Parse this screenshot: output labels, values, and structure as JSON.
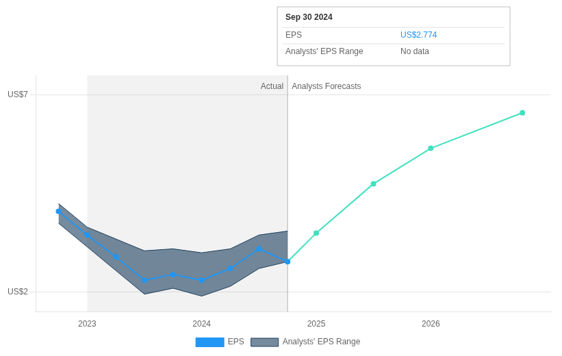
{
  "chart_data": {
    "type": "line",
    "xlim": [
      2022.55,
      2027.05
    ],
    "xticks": [
      2023.0,
      2024.0,
      2025.0,
      2026.0
    ],
    "ylim": [
      1.5,
      7.5
    ],
    "yticks": [
      {
        "value": 2,
        "label": "US$2"
      },
      {
        "value": 7,
        "label": "US$7"
      }
    ],
    "grid": true,
    "legend": "bottom",
    "series": [
      {
        "name": "EPS",
        "color": "#2196f3",
        "x": [
          2022.75,
          2023.0,
          2023.25,
          2023.5,
          2023.75,
          2024.0,
          2024.25,
          2024.5,
          2024.75
        ],
        "values": [
          4.05,
          3.45,
          2.9,
          2.3,
          2.45,
          2.3,
          2.6,
          3.1,
          2.774
        ]
      },
      {
        "color": "#40e0c0",
        "x": [
          2024.75,
          2025.0,
          2025.5,
          2026.0,
          2026.8
        ],
        "values": [
          2.774,
          3.5,
          4.75,
          5.65,
          6.55
        ]
      },
      {
        "name": "Analysts' EPS Range",
        "type": "range",
        "color": "#1a3d5c",
        "x": [
          2022.75,
          2023.0,
          2023.25,
          2023.5,
          2023.75,
          2024.0,
          2024.25,
          2024.5,
          2024.75
        ],
        "upper": [
          4.25,
          3.65,
          3.35,
          3.05,
          3.1,
          3.0,
          3.1,
          3.45,
          3.55
        ],
        "lower": [
          3.75,
          3.15,
          2.55,
          1.95,
          2.1,
          1.9,
          2.15,
          2.6,
          2.774
        ]
      }
    ],
    "annotations": [
      {
        "type": "span",
        "x": [
          2023.0,
          2024.75
        ]
      },
      {
        "type": "vline",
        "x": 2024.75
      },
      {
        "type": "text",
        "text": "Actual",
        "x": 2024.75,
        "y": 7,
        "align": "right"
      },
      {
        "type": "text",
        "text": "Analysts Forecasts",
        "x": 2024.75,
        "y": 7,
        "align": "left"
      },
      {
        "type": "box",
        "title": "Sep 30 2024",
        "rows": [
          {
            "label": "EPS",
            "value": "US$2.774",
            "color": "#2196f3"
          },
          {
            "label": "Analysts' EPS Range",
            "value": "No data"
          }
        ]
      }
    ]
  }
}
